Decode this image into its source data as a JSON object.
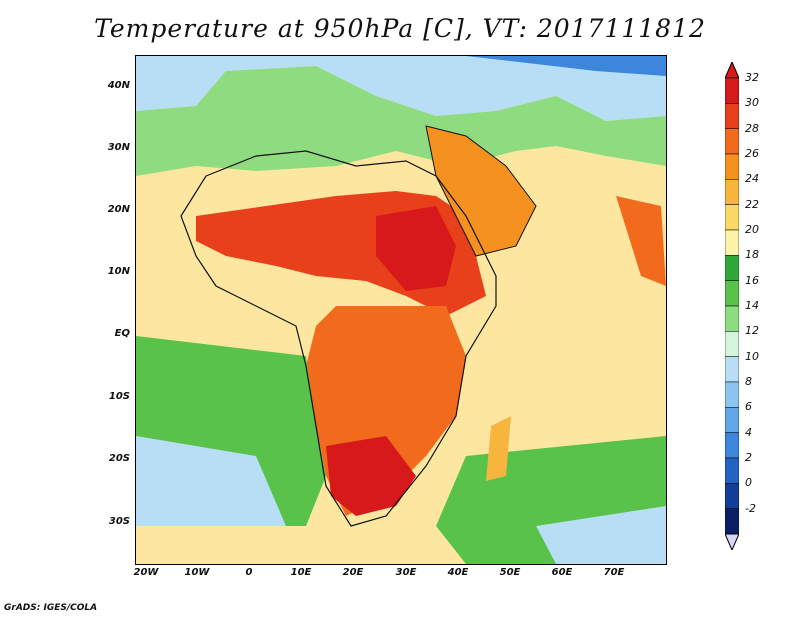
{
  "title": "Temperature at 950hPa [C], VT: 2017111812",
  "credit": "GrADS: IGES/COLA",
  "map": {
    "lat_labels": [
      "40N",
      "30N",
      "20N",
      "10N",
      "EQ",
      "10S",
      "20S",
      "30S"
    ],
    "lon_labels": [
      "20W",
      "10W",
      "0",
      "10E",
      "20E",
      "30E",
      "40E",
      "50E",
      "60E",
      "70E"
    ]
  },
  "colorbar": {
    "levels": [
      "32",
      "30",
      "28",
      "26",
      "24",
      "22",
      "20",
      "18",
      "16",
      "14",
      "12",
      "10",
      "8",
      "6",
      "4",
      "2",
      "0",
      "-2"
    ],
    "colors": [
      "#d7191c",
      "#e8401a",
      "#f26b1d",
      "#f5911f",
      "#f8b53d",
      "#fad866",
      "#fcf2a8",
      "#2fa83a",
      "#58c24a",
      "#8fdc80",
      "#d4f5dc",
      "#b8def6",
      "#8cc5f0",
      "#62a8e8",
      "#3c86dc",
      "#2462c4",
      "#123e9a",
      "#0a1f66"
    ]
  }
}
